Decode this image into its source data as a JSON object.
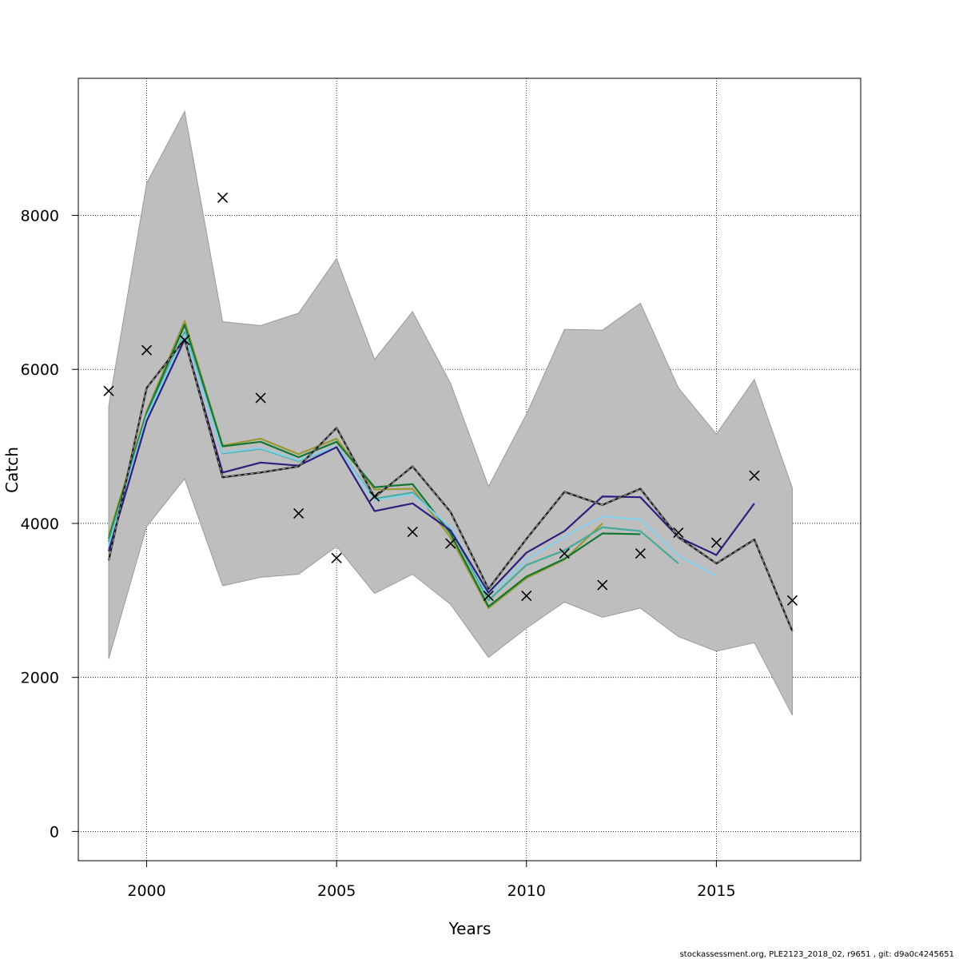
{
  "chart_data": {
    "type": "line",
    "xlabel": "Years",
    "ylabel": "Catch",
    "xlim": [
      1998.2,
      2018.8
    ],
    "ylim": [
      -380,
      9780
    ],
    "x_ticks": [
      2000,
      2005,
      2010,
      2015
    ],
    "y_ticks": [
      0,
      2000,
      4000,
      6000,
      8000
    ],
    "grid": true,
    "legend": "none",
    "footer": "stockassessment.org, PLE2123_2018_02, r9651 , git: d9a0c4245651",
    "colors": {
      "band": "#bebebe",
      "band_edge": "#9a9a9a",
      "estimate": "#222222",
      "estimate_dash": "#9a9a9a",
      "observed": "#000000"
    },
    "confidence_band": {
      "x": [
        1999,
        2000,
        2001,
        2002,
        2003,
        2004,
        2005,
        2006,
        2007,
        2008,
        2009,
        2010,
        2011,
        2012,
        2013,
        2014,
        2015,
        2016,
        2017
      ],
      "upper": [
        5520,
        8420,
        9350,
        6620,
        6570,
        6730,
        7440,
        6130,
        6750,
        5820,
        4480,
        5420,
        6520,
        6510,
        6860,
        5760,
        5160,
        5870,
        4460
      ],
      "lower": [
        2240,
        3960,
        4580,
        3190,
        3300,
        3340,
        3700,
        3090,
        3340,
        2950,
        2260,
        2640,
        2980,
        2780,
        2900,
        2530,
        2340,
        2450,
        1510
      ]
    },
    "estimate": {
      "x": [
        1999,
        2000,
        2001,
        2002,
        2003,
        2004,
        2005,
        2006,
        2007,
        2008,
        2009,
        2010,
        2011,
        2012,
        2013,
        2014,
        2015,
        2016,
        2017
      ],
      "y": [
        3520,
        5760,
        6390,
        4600,
        4660,
        4740,
        5240,
        4340,
        4740,
        4150,
        3150,
        3800,
        4410,
        4240,
        4450,
        3820,
        3480,
        3790,
        2600
      ]
    },
    "observed": {
      "x": [
        1999,
        2000,
        2001,
        2002,
        2003,
        2004,
        2005,
        2006,
        2007,
        2008,
        2009,
        2010,
        2011,
        2012,
        2013,
        2014,
        2015,
        2016,
        2017
      ],
      "y": [
        5720,
        6250,
        6380,
        8230,
        5630,
        4130,
        3550,
        4350,
        3890,
        3740,
        3060,
        3060,
        3610,
        3200,
        3610,
        3880,
        3750,
        4620,
        3000
      ]
    },
    "series": [
      {
        "color": "#2d1f7f",
        "x": [
          1999,
          2000,
          2001,
          2002,
          2003,
          2004,
          2005,
          2006,
          2007,
          2008,
          2009,
          2010,
          2011,
          2012,
          2013,
          2014,
          2015,
          2016
        ],
        "y": [
          3640,
          5330,
          6390,
          4660,
          4790,
          4750,
          4990,
          4160,
          4260,
          3910,
          3100,
          3620,
          3900,
          4350,
          4340,
          3820,
          3590,
          4260
        ]
      },
      {
        "color": "#87ceeb",
        "x": [
          1999,
          2000,
          2001,
          2002,
          2003,
          2004,
          2005,
          2006,
          2007,
          2008,
          2009,
          2010,
          2011,
          2012,
          2013,
          2014,
          2015
        ],
        "y": [
          3700,
          5380,
          6450,
          4920,
          4980,
          4820,
          5000,
          4300,
          4380,
          3950,
          3050,
          3530,
          3830,
          4090,
          4050,
          3580,
          3320
        ]
      },
      {
        "color": "#44aa99",
        "x": [
          1999,
          2000,
          2001,
          2002,
          2003,
          2004,
          2005,
          2006,
          2007,
          2008,
          2009,
          2010,
          2011,
          2012,
          2013,
          2014
        ],
        "y": [
          3760,
          5400,
          6480,
          4910,
          4970,
          4810,
          5000,
          4320,
          4400,
          3940,
          3000,
          3460,
          3650,
          3950,
          3900,
          3480
        ]
      },
      {
        "color": "#117733",
        "x": [
          1999,
          2000,
          2001,
          2002,
          2003,
          2004,
          2005,
          2006,
          2007,
          2008,
          2009,
          2010,
          2011,
          2012,
          2013
        ],
        "y": [
          3800,
          5430,
          6580,
          5000,
          5060,
          4860,
          5060,
          4470,
          4510,
          3870,
          2920,
          3310,
          3540,
          3870,
          3860
        ]
      },
      {
        "color": "#999933",
        "x": [
          1999,
          2000,
          2001,
          2002,
          2003,
          2004,
          2005,
          2006,
          2007,
          2008,
          2009,
          2010,
          2011,
          2012
        ],
        "y": [
          3840,
          5460,
          6630,
          5010,
          5100,
          4900,
          5100,
          4440,
          4450,
          3820,
          2900,
          3290,
          3530,
          4000
        ]
      }
    ]
  }
}
